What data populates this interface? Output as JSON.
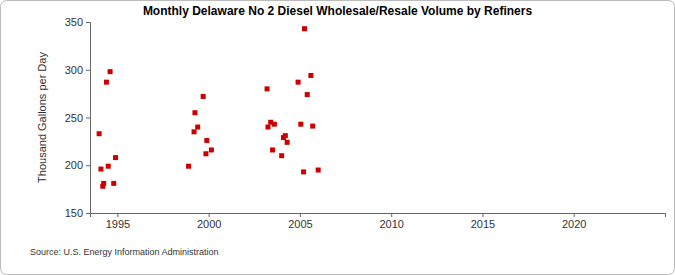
{
  "chart_data": {
    "type": "scatter",
    "title": "Monthly Delaware No 2 Diesel Wholesale/Resale Volume by Refiners",
    "y_label": "Thousand Gallons per Day",
    "source": "Source: U.S. Energy Information Administration",
    "color": "#cc0000",
    "marker": "square",
    "grid": false,
    "x": [
      1994.0,
      1994.1,
      1994.2,
      1994.25,
      1994.4,
      1994.5,
      1994.6,
      1994.8,
      1994.9,
      1998.9,
      1999.2,
      1999.25,
      1999.4,
      1999.7,
      1999.85,
      1999.9,
      2000.15,
      2003.2,
      2003.25,
      2003.4,
      2003.5,
      2003.6,
      2004.0,
      2004.1,
      2004.2,
      2004.3,
      2004.9,
      2005.05,
      2005.2,
      2005.25,
      2005.4,
      2005.6,
      2005.7,
      2006.0
    ],
    "values": [
      233,
      196,
      178,
      181,
      287,
      199,
      298,
      181,
      208,
      199,
      235,
      255,
      240,
      272,
      212,
      226,
      216,
      280,
      240,
      245,
      216,
      243,
      210,
      229,
      231,
      224,
      287,
      243,
      193,
      343,
      274,
      294,
      241,
      195
    ],
    "xlim": [
      1993.5,
      2025
    ],
    "xticks": [
      1995,
      2000,
      2005,
      2010,
      2015,
      2020
    ],
    "ylim": [
      150,
      350
    ],
    "yticks": [
      150,
      200,
      250,
      300,
      350
    ]
  }
}
